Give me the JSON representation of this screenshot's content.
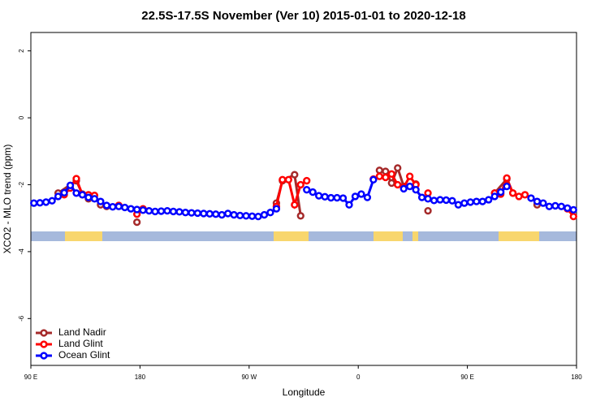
{
  "chart_data": {
    "type": "line",
    "title": "22.5S-17.5S November (Ver 10)   2015-01-01 to 2020-12-18",
    "xlabel": "Longitude",
    "ylabel": "XCO2 - MLO trend (ppm)",
    "xlim": [
      90,
      540
    ],
    "ylim": [
      -7.4,
      2.55
    ],
    "xticks": [
      {
        "value": 90,
        "label": "90 E"
      },
      180,
      {
        "value": 270,
        "label": "90 W"
      },
      {
        "value": 360,
        "label": "0"
      },
      {
        "value": 450,
        "label": "90 E"
      },
      {
        "value": 540,
        "label": "180"
      }
    ],
    "yticks": [
      2,
      0,
      -2,
      -4,
      -6
    ],
    "legend": "bottomleft",
    "series": [
      {
        "name": "Land Nadir",
        "color": "#a52a2a",
        "x": [
          112.5,
          127.5,
          132.5,
          137.5,
          142.5,
          147.5,
          152.5,
          157.5,
          162.5,
          167.5,
          177.5,
          187.5,
          292.5,
          297.5,
          307.5,
          312.5,
          347.5,
          377.5,
          382.5,
          387.5,
          392.5,
          397.5,
          407.5,
          412.5,
          417.5,
          447.5,
          472.5,
          482.5,
          487.5,
          497.5,
          507.5
        ],
        "values": [
          -2.25,
          -1.88,
          -2.28,
          -2.42,
          null,
          -2.6,
          -2.65,
          null,
          -2.62,
          null,
          -3.12,
          null,
          -2.55,
          -1.88,
          -1.7,
          -2.93,
          null,
          -1.57,
          -1.6,
          -1.95,
          -1.5,
          -2.05,
          -1.98,
          null,
          -2.78,
          null,
          -2.25,
          -1.83,
          -2.25,
          null,
          -2.6
        ]
      },
      {
        "name": "Land Glint",
        "color": "#ff0000",
        "x": [
          117.5,
          122.5,
          127.5,
          132.5,
          137.5,
          142.5,
          152.5,
          162.5,
          172.5,
          177.5,
          182.5,
          247.5,
          292.5,
          297.5,
          302.5,
          307.5,
          312.5,
          317.5,
          347.5,
          372.5,
          377.5,
          382.5,
          387.5,
          392.5,
          397.5,
          402.5,
          407.5,
          412.5,
          417.5,
          447.5,
          472.5,
          477.5,
          482.5,
          487.5,
          492.5,
          497.5,
          517.5,
          532.5,
          537.5
        ],
        "values": [
          -2.3,
          -2.1,
          -1.82,
          -2.3,
          -2.3,
          -2.32,
          null,
          -2.62,
          null,
          -2.88,
          -2.72,
          null,
          -2.65,
          -1.85,
          -1.85,
          -2.6,
          -2.0,
          -1.88,
          null,
          -1.83,
          -1.75,
          -1.78,
          -1.68,
          -2.0,
          -2.08,
          -1.75,
          -2.0,
          null,
          -2.25,
          null,
          -2.25,
          -2.28,
          -1.8,
          -2.25,
          -2.35,
          -2.3,
          null,
          -2.72,
          -2.95
        ]
      },
      {
        "name": "Ocean Glint",
        "color": "#0000ff",
        "x": [
          92.5,
          97.5,
          102.5,
          107.5,
          112.5,
          117.5,
          122.5,
          127.5,
          132.5,
          137.5,
          142.5,
          147.5,
          152.5,
          157.5,
          162.5,
          167.5,
          172.5,
          177.5,
          182.5,
          187.5,
          192.5,
          197.5,
          202.5,
          207.5,
          212.5,
          217.5,
          222.5,
          227.5,
          232.5,
          237.5,
          242.5,
          247.5,
          252.5,
          257.5,
          262.5,
          267.5,
          272.5,
          277.5,
          282.5,
          287.5,
          292.5,
          302.5,
          317.5,
          322.5,
          327.5,
          332.5,
          337.5,
          342.5,
          347.5,
          352.5,
          357.5,
          362.5,
          367.5,
          372.5,
          387.5,
          397.5,
          402.5,
          407.5,
          412.5,
          417.5,
          422.5,
          427.5,
          432.5,
          437.5,
          442.5,
          447.5,
          452.5,
          457.5,
          462.5,
          467.5,
          472.5,
          477.5,
          482.5,
          492.5,
          502.5,
          507.5,
          512.5,
          517.5,
          522.5,
          527.5,
          532.5,
          537.5
        ],
        "values": [
          -2.55,
          -2.54,
          -2.52,
          -2.48,
          -2.35,
          -2.24,
          -2.02,
          -2.25,
          -2.3,
          -2.38,
          -2.42,
          -2.5,
          -2.62,
          -2.66,
          -2.65,
          -2.68,
          -2.72,
          -2.74,
          -2.76,
          -2.78,
          -2.8,
          -2.79,
          -2.78,
          -2.8,
          -2.81,
          -2.83,
          -2.84,
          -2.85,
          -2.86,
          -2.87,
          -2.88,
          -2.9,
          -2.86,
          -2.9,
          -2.92,
          -2.93,
          -2.94,
          -2.95,
          -2.9,
          -2.83,
          -2.72,
          null,
          -2.15,
          -2.22,
          -2.33,
          -2.36,
          -2.39,
          -2.39,
          -2.4,
          -2.6,
          -2.35,
          -2.28,
          -2.38,
          -1.85,
          null,
          -2.12,
          -2.05,
          -2.15,
          -2.38,
          -2.42,
          -2.47,
          -2.45,
          -2.46,
          -2.48,
          -2.6,
          -2.55,
          -2.52,
          -2.5,
          -2.5,
          -2.45,
          -2.35,
          -2.22,
          -2.05,
          null,
          -2.4,
          -2.5,
          -2.55,
          -2.65,
          -2.63,
          -2.65,
          -2.7,
          -2.75
        ]
      }
    ]
  }
}
